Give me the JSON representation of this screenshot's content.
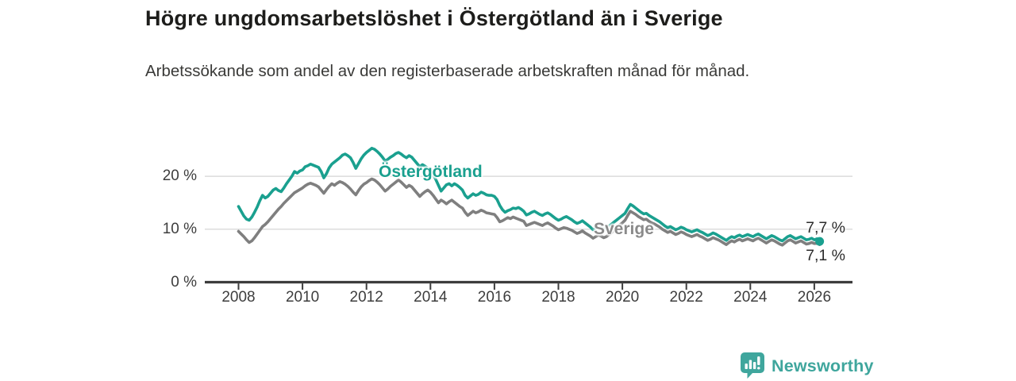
{
  "header": {
    "title": "Högre ungdomsarbetslöshet i Östergötland än i Sverige",
    "subtitle": "Arbetssökande som andel av den registerbaserade arbetskraften månad för månad."
  },
  "chart_data": {
    "type": "line",
    "title": "Högre ungdomsarbetslöshet i Östergötland än i Sverige",
    "x_unit": "month",
    "x_start": "2008-01",
    "x_end": "2026-03",
    "x_tick_labels": [
      "2008",
      "2010",
      "2012",
      "2014",
      "2016",
      "2018",
      "2020",
      "2022",
      "2024",
      "2026"
    ],
    "y_ticks": [
      0,
      10,
      20
    ],
    "y_tick_labels": [
      "0 %",
      "10 %",
      "20 %"
    ],
    "ylim": [
      0,
      28
    ],
    "grid": "horizontal",
    "legend": "inline-labels",
    "end_labels": [
      "7,7 %",
      "7,1 %"
    ],
    "series": [
      {
        "name": "Östergötland",
        "color": "#1aa08f",
        "end_value": 7.7,
        "values": [
          14.3,
          13.4,
          12.5,
          11.9,
          11.7,
          12.3,
          13.2,
          14.2,
          15.4,
          16.4,
          15.9,
          16.2,
          16.8,
          17.4,
          17.7,
          17.3,
          17.1,
          17.8,
          18.6,
          19.3,
          20.0,
          20.9,
          20.6,
          21.0,
          21.2,
          21.8,
          22.0,
          22.3,
          22.1,
          21.9,
          21.7,
          20.9,
          19.7,
          20.5,
          21.6,
          22.3,
          22.7,
          23.1,
          23.5,
          24.0,
          24.2,
          23.9,
          23.5,
          22.6,
          21.5,
          22.4,
          23.3,
          24.0,
          24.5,
          24.9,
          25.3,
          25.1,
          24.7,
          24.2,
          23.6,
          22.9,
          23.2,
          23.6,
          23.9,
          24.3,
          24.5,
          24.2,
          23.8,
          23.5,
          23.9,
          23.6,
          23.0,
          22.4,
          21.8,
          22.2,
          21.9,
          21.5,
          21.0,
          20.3,
          19.4,
          18.3,
          17.2,
          17.8,
          18.4,
          18.6,
          18.2,
          18.6,
          18.3,
          17.9,
          17.4,
          16.4,
          15.9,
          16.3,
          16.7,
          16.4,
          16.6,
          17.0,
          16.8,
          16.5,
          16.4,
          16.4,
          16.2,
          15.6,
          14.5,
          13.7,
          13.2,
          13.5,
          13.7,
          14.0,
          13.9,
          14.1,
          13.8,
          13.4,
          12.7,
          12.9,
          13.2,
          13.4,
          13.1,
          12.8,
          12.6,
          12.9,
          13.1,
          12.8,
          12.4,
          12.0,
          11.7,
          11.9,
          12.2,
          12.4,
          12.1,
          11.8,
          11.4,
          11.1,
          11.3,
          11.6,
          11.2,
          10.8,
          10.4,
          9.9,
          10.2,
          10.5,
          10.3,
          10.0,
          10.2,
          10.6,
          11.0,
          11.4,
          11.8,
          12.2,
          12.6,
          13.0,
          13.9,
          14.7,
          14.4,
          14.0,
          13.6,
          13.2,
          12.9,
          13.0,
          12.6,
          12.3,
          12.0,
          11.7,
          11.4,
          11.0,
          10.6,
          10.3,
          10.5,
          10.2,
          9.9,
          10.1,
          10.4,
          10.2,
          9.9,
          9.7,
          9.5,
          9.7,
          9.9,
          9.6,
          9.4,
          9.1,
          8.8,
          9.0,
          9.3,
          9.1,
          8.8,
          8.5,
          8.2,
          7.9,
          8.3,
          8.6,
          8.4,
          8.7,
          8.9,
          8.6,
          8.8,
          9.0,
          8.8,
          8.6,
          8.9,
          9.1,
          8.8,
          8.5,
          8.2,
          8.5,
          8.8,
          8.6,
          8.3,
          8.0,
          7.8,
          8.2,
          8.6,
          8.8,
          8.5,
          8.2,
          8.4,
          8.6,
          8.3,
          8.0,
          8.1,
          8.3,
          8.0,
          8.2,
          7.7
        ]
      },
      {
        "name": "Sverige",
        "color": "#7f7f7f",
        "end_value": 7.1,
        "values": [
          9.6,
          9.1,
          8.6,
          8.0,
          7.5,
          7.8,
          8.4,
          9.1,
          9.8,
          10.5,
          10.9,
          11.4,
          12.0,
          12.6,
          13.2,
          13.8,
          14.3,
          14.9,
          15.4,
          15.9,
          16.4,
          16.9,
          17.2,
          17.5,
          17.8,
          18.2,
          18.5,
          18.7,
          18.5,
          18.3,
          18.0,
          17.4,
          16.8,
          17.5,
          18.1,
          18.6,
          18.3,
          18.7,
          19.0,
          18.8,
          18.5,
          18.1,
          17.6,
          17.0,
          16.5,
          17.3,
          18.0,
          18.5,
          18.8,
          19.2,
          19.5,
          19.3,
          18.9,
          18.4,
          17.8,
          17.2,
          17.6,
          18.1,
          18.5,
          18.9,
          19.3,
          18.9,
          18.4,
          17.9,
          18.3,
          18.0,
          17.4,
          16.8,
          16.2,
          16.7,
          17.1,
          17.4,
          17.0,
          16.4,
          15.7,
          15.0,
          15.5,
          15.2,
          14.8,
          15.2,
          15.5,
          15.1,
          14.7,
          14.3,
          14.0,
          13.2,
          12.6,
          13.0,
          13.4,
          13.1,
          13.3,
          13.6,
          13.4,
          13.1,
          13.0,
          12.9,
          12.8,
          12.2,
          11.4,
          11.6,
          11.9,
          12.2,
          12.0,
          12.3,
          12.1,
          11.9,
          11.7,
          11.5,
          10.7,
          10.9,
          11.1,
          11.3,
          11.1,
          10.9,
          10.7,
          11.0,
          11.2,
          10.9,
          10.6,
          10.2,
          9.9,
          10.1,
          10.3,
          10.2,
          10.0,
          9.8,
          9.5,
          9.2,
          9.4,
          9.7,
          9.3,
          9.0,
          8.7,
          8.3,
          8.6,
          8.9,
          8.7,
          8.4,
          8.6,
          9.0,
          9.4,
          9.8,
          10.3,
          10.8,
          11.2,
          11.7,
          12.6,
          13.4,
          13.1,
          12.8,
          12.4,
          12.1,
          11.8,
          11.9,
          11.5,
          11.2,
          11.0,
          10.7,
          10.4,
          10.0,
          9.7,
          9.4,
          9.6,
          9.3,
          9.0,
          9.2,
          9.5,
          9.3,
          9.0,
          8.8,
          8.6,
          8.8,
          9.0,
          8.7,
          8.5,
          8.2,
          7.9,
          8.1,
          8.4,
          8.2,
          8.0,
          7.7,
          7.4,
          7.1,
          7.5,
          7.8,
          7.6,
          7.9,
          8.1,
          7.8,
          8.0,
          8.2,
          8.0,
          7.8,
          8.1,
          8.3,
          8.0,
          7.7,
          7.4,
          7.7,
          8.0,
          7.8,
          7.5,
          7.2,
          7.0,
          7.4,
          7.8,
          8.0,
          7.7,
          7.4,
          7.6,
          7.8,
          7.5,
          7.2,
          7.3,
          7.5,
          7.3,
          7.4,
          7.1
        ]
      }
    ]
  },
  "colors": {
    "accent_teal": "#1aa08f",
    "series_gray": "#7f7f7f",
    "grid": "#dcdcdc",
    "axis": "#3d3d3d",
    "text_dark": "#1d1d1b",
    "text_body": "#3a3a38",
    "brand_teal": "#3fa69d"
  },
  "footer": {
    "brand": "Newsworthy"
  }
}
